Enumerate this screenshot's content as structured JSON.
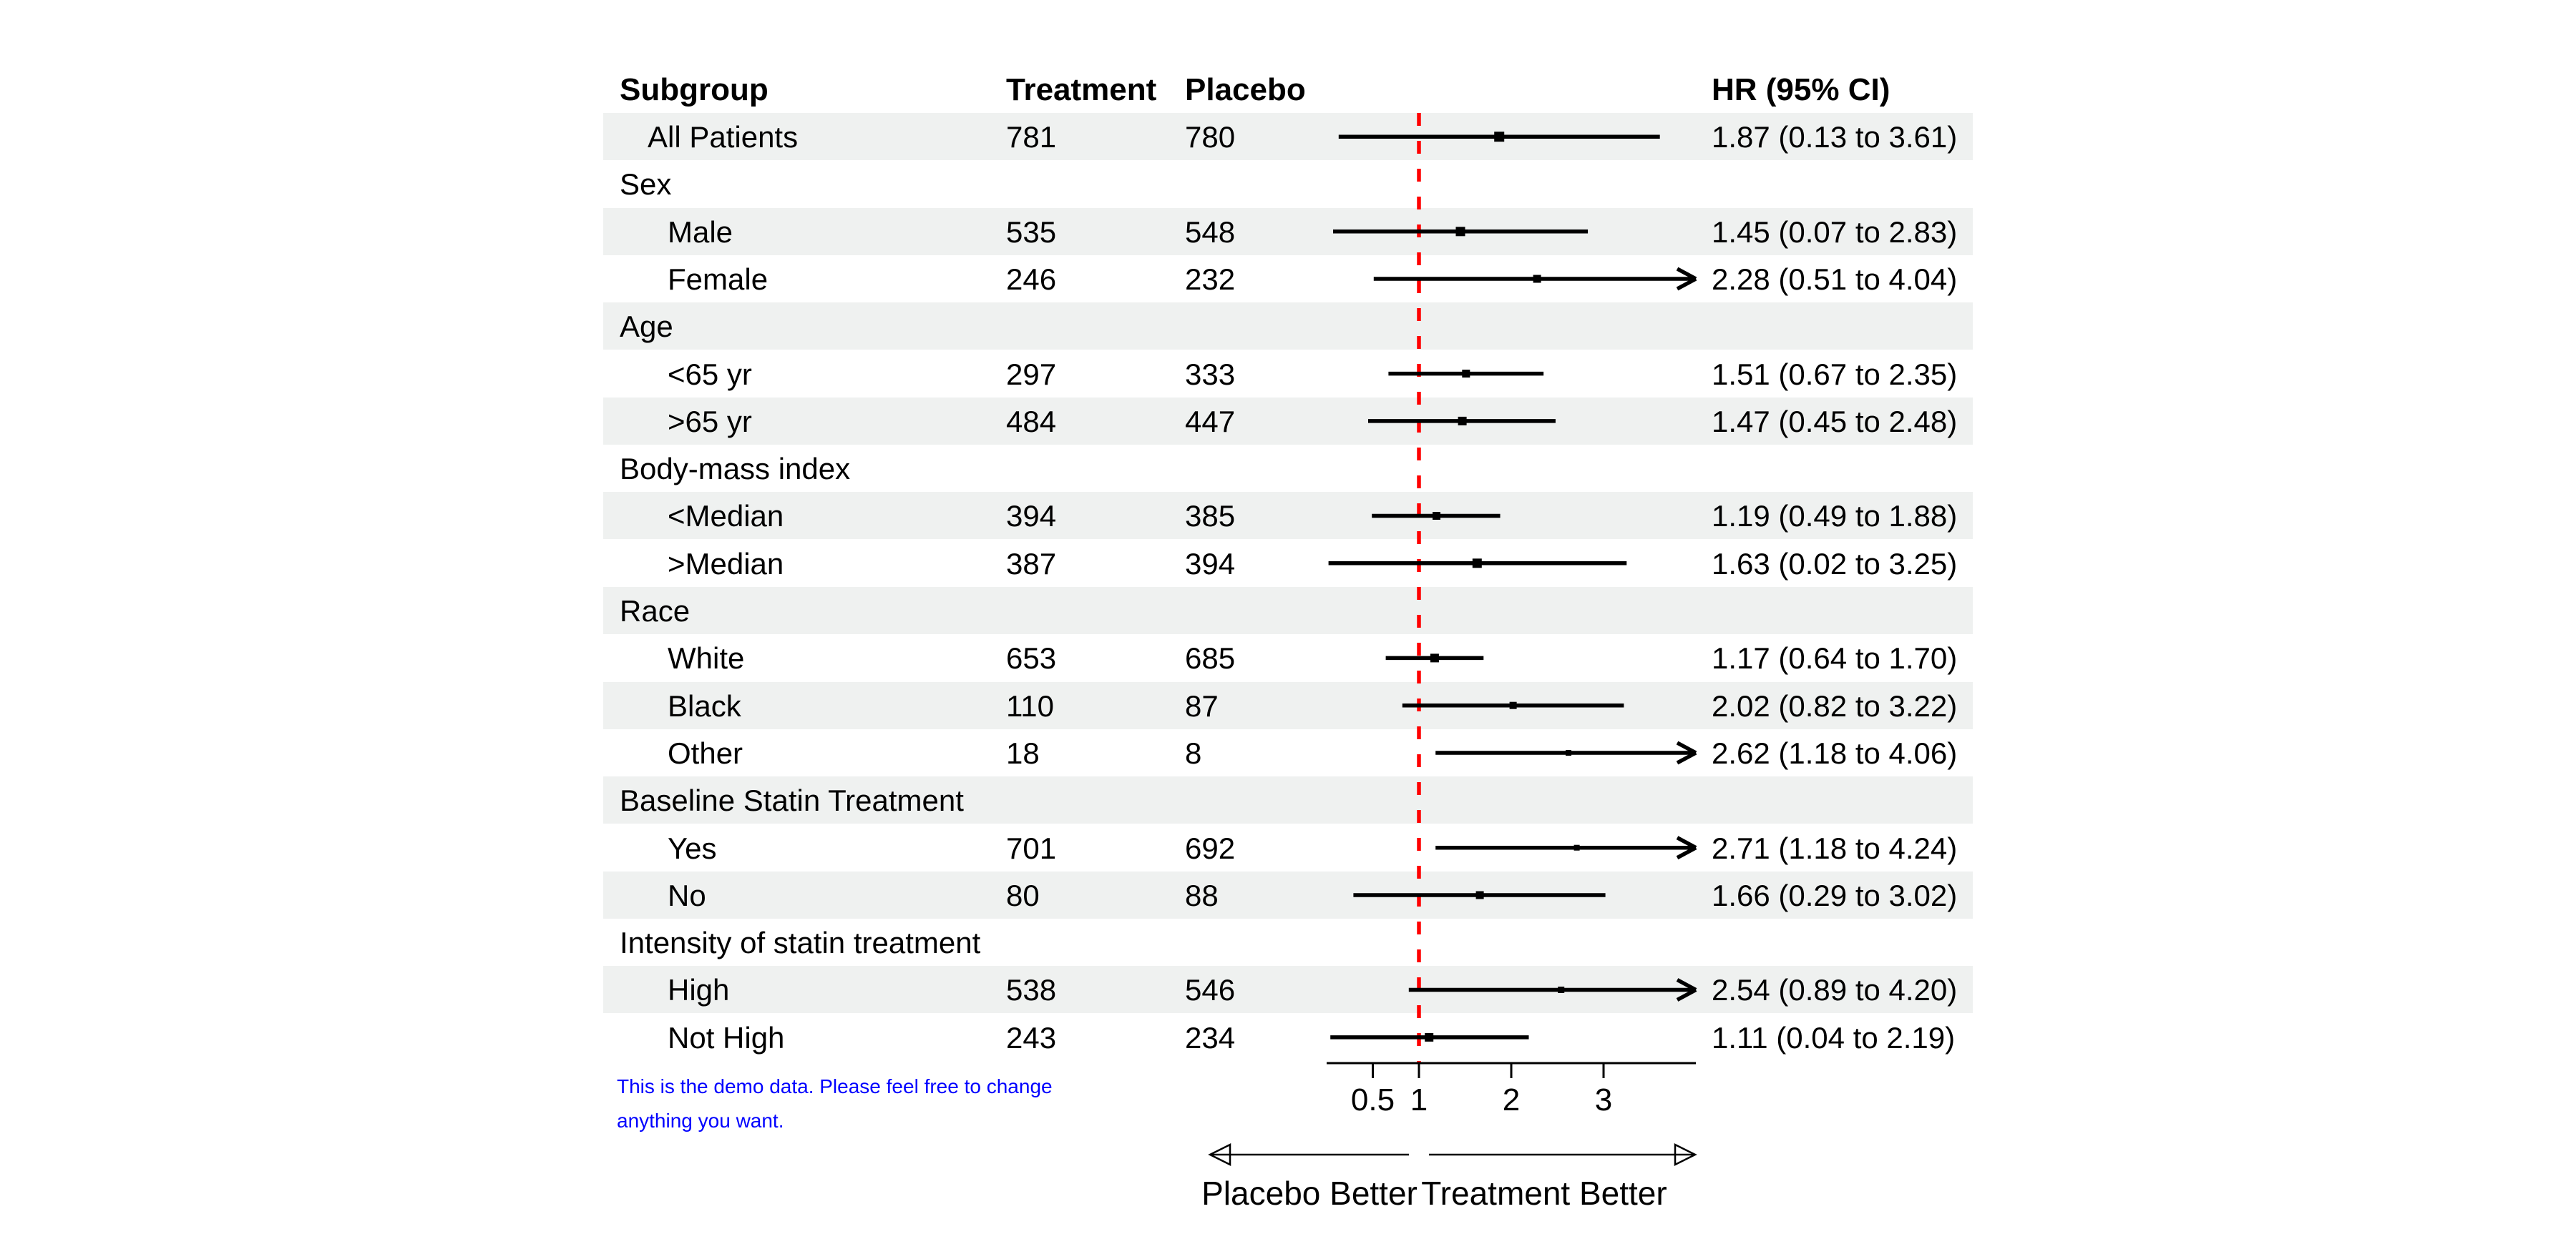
{
  "palette": {
    "stripe": "#eff1f0",
    "reference_line_red": "#ff0000",
    "note_blue": "#0000ff",
    "ink": "#000000"
  },
  "header": {
    "subgroup": "Subgroup",
    "treatment": "Treatment",
    "placebo": "Placebo",
    "hr": "HR (95% CI)"
  },
  "note": {
    "line1": "This is the demo data. Please feel free to change",
    "line2": "anything you want."
  },
  "chart_data": {
    "type": "forest",
    "title": "",
    "x_axis": {
      "scale": "linear",
      "xlim": [
        0,
        4
      ],
      "tick_values": [
        0.5,
        1,
        2,
        3
      ],
      "tick_labels": [
        "0.5",
        "1",
        "2",
        "3"
      ],
      "reference_value": 1,
      "left_direction_label": "Placebo Better",
      "right_direction_label": "Treatment Better"
    },
    "columns": [
      "Subgroup",
      "Treatment",
      "Placebo",
      "HR (95% CI)"
    ],
    "rows": [
      {
        "label": "All Patients",
        "indent": 1,
        "group": false,
        "treatment": "781",
        "placebo": "780",
        "hr": 1.87,
        "lo": 0.13,
        "hi": 3.61,
        "hr_text": "1.87 (0.13 to 3.61)",
        "clipped": false,
        "stripe": true,
        "box": 14
      },
      {
        "label": "Sex",
        "indent": 0,
        "group": true,
        "stripe": false
      },
      {
        "label": "Male",
        "indent": 2,
        "group": false,
        "treatment": "535",
        "placebo": "548",
        "hr": 1.45,
        "lo": 0.07,
        "hi": 2.83,
        "hr_text": "1.45 (0.07 to 2.83)",
        "clipped": false,
        "stripe": true,
        "box": 13
      },
      {
        "label": "Female",
        "indent": 2,
        "group": false,
        "treatment": "246",
        "placebo": "232",
        "hr": 2.28,
        "lo": 0.51,
        "hi": 4.04,
        "hr_text": "2.28 (0.51 to 4.04)",
        "clipped": true,
        "stripe": false,
        "box": 11
      },
      {
        "label": "Age",
        "indent": 0,
        "group": true,
        "stripe": true
      },
      {
        "label": "<65 yr",
        "indent": 2,
        "group": false,
        "treatment": "297",
        "placebo": "333",
        "hr": 1.51,
        "lo": 0.67,
        "hi": 2.35,
        "hr_text": "1.51 (0.67 to 2.35)",
        "clipped": false,
        "stripe": false,
        "box": 11
      },
      {
        "label": ">65 yr",
        "indent": 2,
        "group": false,
        "treatment": "484",
        "placebo": "447",
        "hr": 1.47,
        "lo": 0.45,
        "hi": 2.48,
        "hr_text": "1.47 (0.45 to 2.48)",
        "clipped": false,
        "stripe": true,
        "box": 12
      },
      {
        "label": "Body-mass index",
        "indent": 0,
        "group": true,
        "stripe": false
      },
      {
        "label": "<Median",
        "indent": 2,
        "group": false,
        "treatment": "394",
        "placebo": "385",
        "hr": 1.19,
        "lo": 0.49,
        "hi": 1.88,
        "hr_text": "1.19 (0.49 to 1.88)",
        "clipped": false,
        "stripe": true,
        "box": 11
      },
      {
        "label": ">Median",
        "indent": 2,
        "group": false,
        "treatment": "387",
        "placebo": "394",
        "hr": 1.63,
        "lo": 0.02,
        "hi": 3.25,
        "hr_text": "1.63 (0.02 to 3.25)",
        "clipped": false,
        "stripe": false,
        "box": 13
      },
      {
        "label": "Race",
        "indent": 0,
        "group": true,
        "stripe": true
      },
      {
        "label": "White",
        "indent": 2,
        "group": false,
        "treatment": "653",
        "placebo": "685",
        "hr": 1.17,
        "lo": 0.64,
        "hi": 1.7,
        "hr_text": "1.17 (0.64 to 1.70)",
        "clipped": false,
        "stripe": false,
        "box": 12
      },
      {
        "label": "Black",
        "indent": 2,
        "group": false,
        "treatment": "110",
        "placebo": "87",
        "hr": 2.02,
        "lo": 0.82,
        "hi": 3.22,
        "hr_text": "2.02 (0.82 to 3.22)",
        "clipped": false,
        "stripe": true,
        "box": 10
      },
      {
        "label": "Other",
        "indent": 2,
        "group": false,
        "treatment": "18",
        "placebo": "8",
        "hr": 2.62,
        "lo": 1.18,
        "hi": 4.06,
        "hr_text": "2.62 (1.18 to 4.06)",
        "clipped": true,
        "stripe": false,
        "box": 8
      },
      {
        "label": "Baseline Statin Treatment",
        "indent": 0,
        "group": true,
        "stripe": true
      },
      {
        "label": "Yes",
        "indent": 2,
        "group": false,
        "treatment": "701",
        "placebo": "692",
        "hr": 2.71,
        "lo": 1.18,
        "hi": 4.24,
        "hr_text": "2.71 (1.18 to 4.24)",
        "clipped": true,
        "stripe": false,
        "box": 8
      },
      {
        "label": "No",
        "indent": 2,
        "group": false,
        "treatment": "80",
        "placebo": "88",
        "hr": 1.66,
        "lo": 0.29,
        "hi": 3.02,
        "hr_text": "1.66 (0.29 to 3.02)",
        "clipped": false,
        "stripe": true,
        "box": 11
      },
      {
        "label": "Intensity of statin treatment",
        "indent": 0,
        "group": true,
        "stripe": false
      },
      {
        "label": "High",
        "indent": 2,
        "group": false,
        "treatment": "538",
        "placebo": "546",
        "hr": 2.54,
        "lo": 0.89,
        "hi": 4.2,
        "hr_text": "2.54 (0.89 to 4.20)",
        "clipped": true,
        "stripe": true,
        "box": 9
      },
      {
        "label": "Not High",
        "indent": 2,
        "group": false,
        "treatment": "243",
        "placebo": "234",
        "hr": 1.11,
        "lo": 0.04,
        "hi": 2.19,
        "hr_text": "1.11 (0.04 to 2.19)",
        "clipped": false,
        "stripe": false,
        "box": 12
      }
    ]
  }
}
